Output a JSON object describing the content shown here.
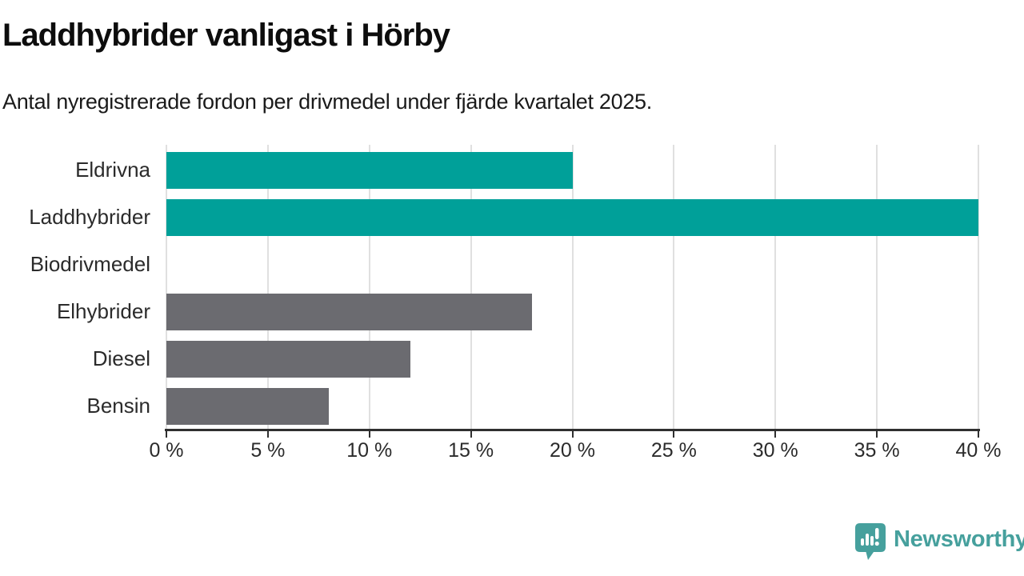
{
  "header": {
    "title": "Laddhybrider vanligast i Hörby",
    "subtitle": "Antal nyregistrerade fordon per drivmedel under fjärde kvartalet 2025."
  },
  "chart_data": {
    "type": "bar",
    "orientation": "horizontal",
    "title": "Laddhybrider vanligast i Hörby",
    "subtitle": "Antal nyregistrerade fordon per drivmedel under fjärde kvartalet 2025.",
    "categories": [
      "Eldrivna",
      "Laddhybrider",
      "Biodrivmedel",
      "Elhybrider",
      "Diesel",
      "Bensin"
    ],
    "values": [
      20,
      40,
      0,
      18,
      12,
      8
    ],
    "unit": "%",
    "bar_colors": [
      "#00a099",
      "#00a099",
      "#6b6b70",
      "#6b6b70",
      "#6b6b70",
      "#6b6b70"
    ],
    "xlim": [
      0,
      40
    ],
    "x_ticks": [
      0,
      5,
      10,
      15,
      20,
      25,
      30,
      35,
      40
    ],
    "x_tick_labels": [
      "0 %",
      "5 %",
      "10 %",
      "15 %",
      "20 %",
      "25 %",
      "30 %",
      "35 %",
      "40 %"
    ],
    "xlabel": "",
    "ylabel": "",
    "grid": "vertical",
    "legend": "none"
  },
  "footer": {
    "brand": "Newsworthy"
  },
  "colors": {
    "highlight": "#00a099",
    "muted": "#6b6b70",
    "grid": "#e0e0e0",
    "axis": "#2f2f2f",
    "text": "#1a1a1a",
    "brand": "#46a09d"
  }
}
